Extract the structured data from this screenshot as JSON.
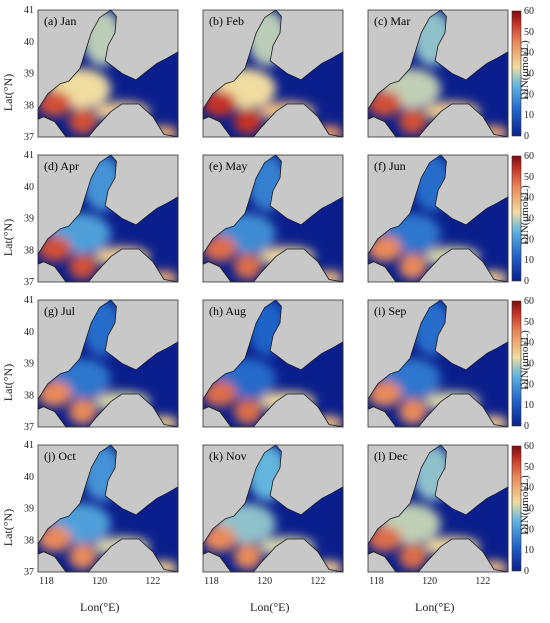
{
  "figure": {
    "ylabel": "Lat(°N)",
    "xlabel": "Lon(°E)",
    "colorbar_label": "DIN(μmol/L)",
    "lat_ticks": [
      "37",
      "38",
      "39",
      "40",
      "41"
    ],
    "lon_ticks": [
      "118",
      "120",
      "122"
    ],
    "colorbar_ticks": [
      "0",
      "10",
      "20",
      "30",
      "40",
      "50",
      "60"
    ],
    "colorbar_range": [
      0,
      60
    ],
    "colors": {
      "land": "#c8c8c8",
      "low": "#0b1f8c",
      "mid": "#5fb4e0",
      "high": "#c43226",
      "coast": "#1a1a1a"
    }
  },
  "panels": [
    {
      "label": "(a) Jan",
      "bohai_level": 0.55,
      "south_level": 0.85
    },
    {
      "label": "(b) Feb",
      "bohai_level": 0.55,
      "south_level": 0.9
    },
    {
      "label": "(c) Mar",
      "bohai_level": 0.5,
      "south_level": 0.85
    },
    {
      "label": "(d) Apr",
      "bohai_level": 0.35,
      "south_level": 0.85
    },
    {
      "label": "(e) May",
      "bohai_level": 0.3,
      "south_level": 0.8
    },
    {
      "label": "(f) Jun",
      "bohai_level": 0.25,
      "south_level": 0.75
    },
    {
      "label": "(g) Jul",
      "bohai_level": 0.25,
      "south_level": 0.75
    },
    {
      "label": "(h) Aug",
      "bohai_level": 0.22,
      "south_level": 0.8
    },
    {
      "label": "(i) Sep",
      "bohai_level": 0.25,
      "south_level": 0.75
    },
    {
      "label": "(j) Oct",
      "bohai_level": 0.35,
      "south_level": 0.75
    },
    {
      "label": "(k) Nov",
      "bohai_level": 0.45,
      "south_level": 0.75
    },
    {
      "label": "(l) Dec",
      "bohai_level": 0.5,
      "south_level": 0.8
    }
  ]
}
